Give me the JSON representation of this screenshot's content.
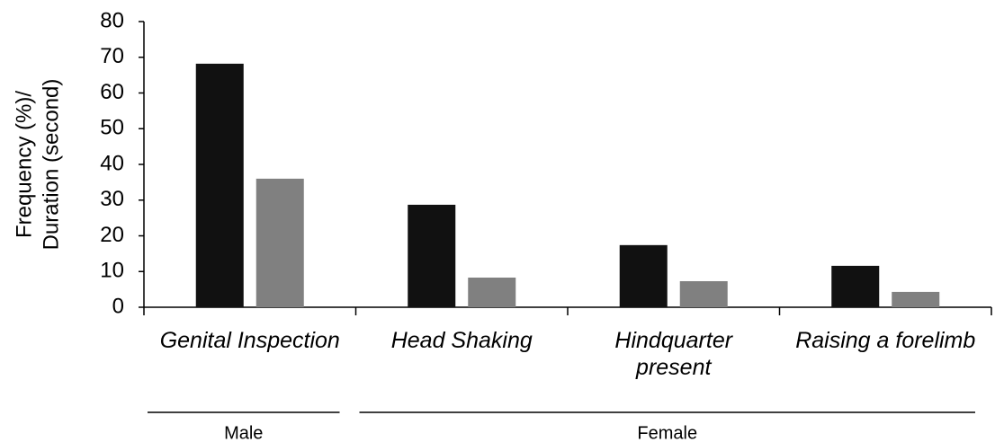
{
  "chart_data": {
    "type": "bar",
    "ylabel": [
      "Frequency (%)/",
      "Duration (second)"
    ],
    "categories": [
      "Genital Inspection",
      "Head Shaking",
      "Hindquarter present",
      "Raising a forelimb"
    ],
    "series": [
      {
        "color": "#111111",
        "values": [
          68.2,
          28.7,
          17.4,
          11.6
        ]
      },
      {
        "color": "#808080",
        "values": [
          36,
          8.3,
          7.3,
          4.3
        ]
      }
    ],
    "groups": [
      {
        "label": "Male",
        "count": 1
      },
      {
        "label": "Female",
        "count": 3
      }
    ],
    "ylim": [
      0,
      80
    ],
    "yticks": [
      0,
      10,
      20,
      30,
      40,
      50,
      60,
      70,
      80
    ],
    "grid": false
  }
}
